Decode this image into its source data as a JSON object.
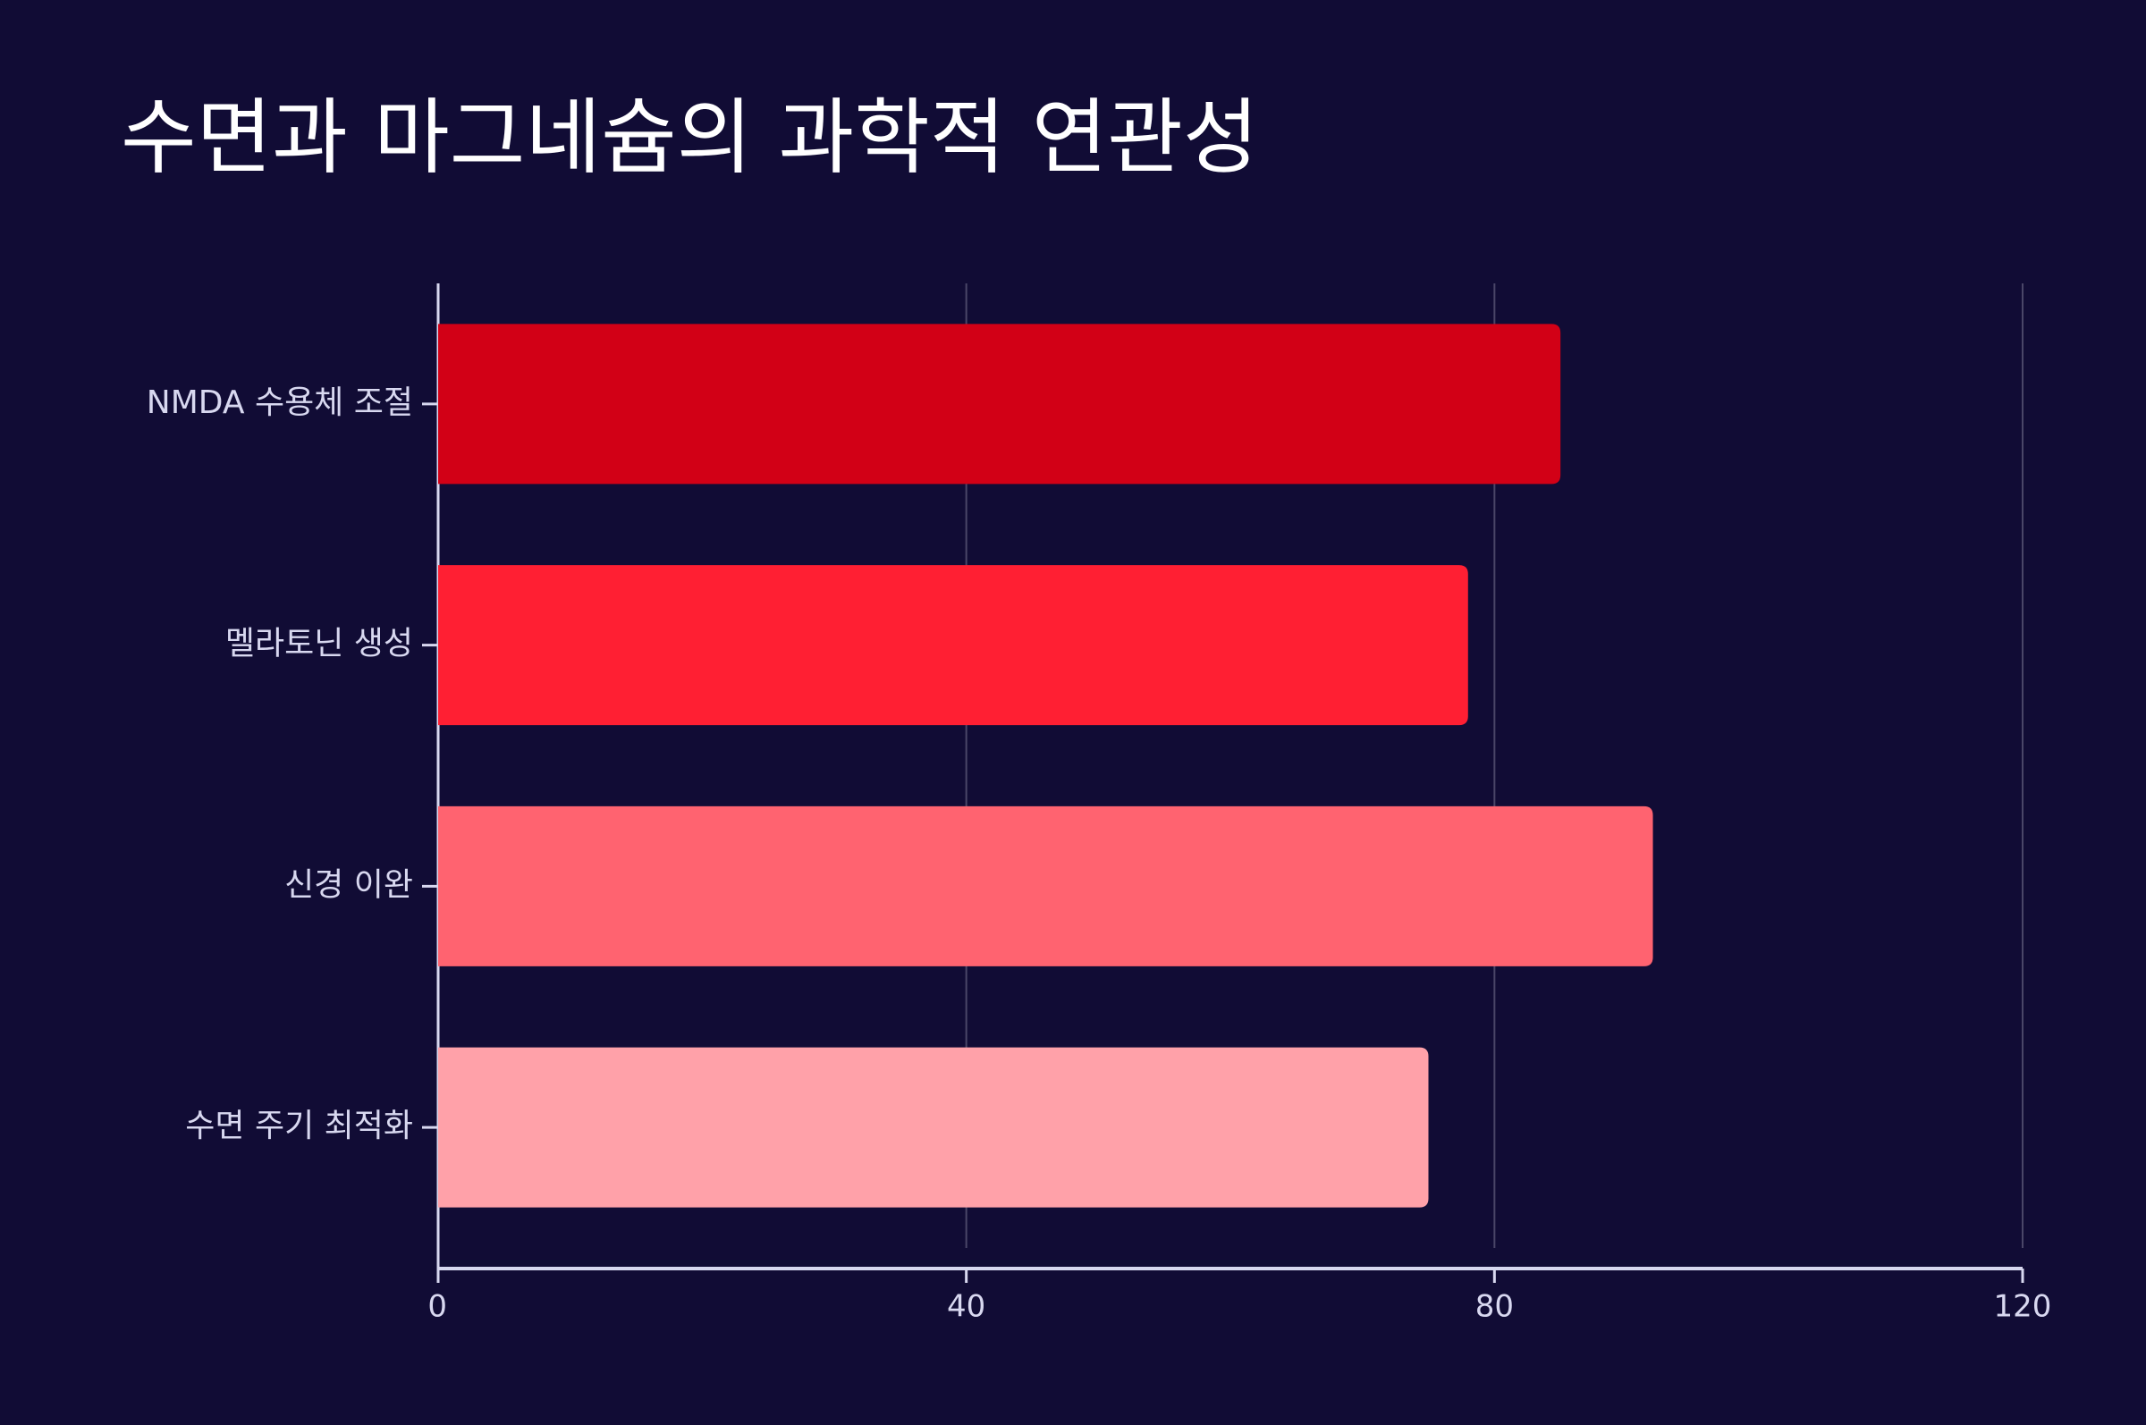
{
  "chart_data": {
    "type": "barh",
    "title": "수면과 마그네슘의 과학적 연관성",
    "categories": [
      "NMDA 수용체 조절",
      "멜라토닌 생성",
      "신경 이완",
      "수면 주기 최적화"
    ],
    "values": [
      85,
      78,
      92,
      75
    ],
    "colors": [
      "#d20016",
      "#ff1f33",
      "#ff6370",
      "#ffa1a9"
    ],
    "xlim": [
      0,
      120
    ],
    "xticks": [
      0,
      40,
      80,
      120
    ],
    "grid": true
  }
}
